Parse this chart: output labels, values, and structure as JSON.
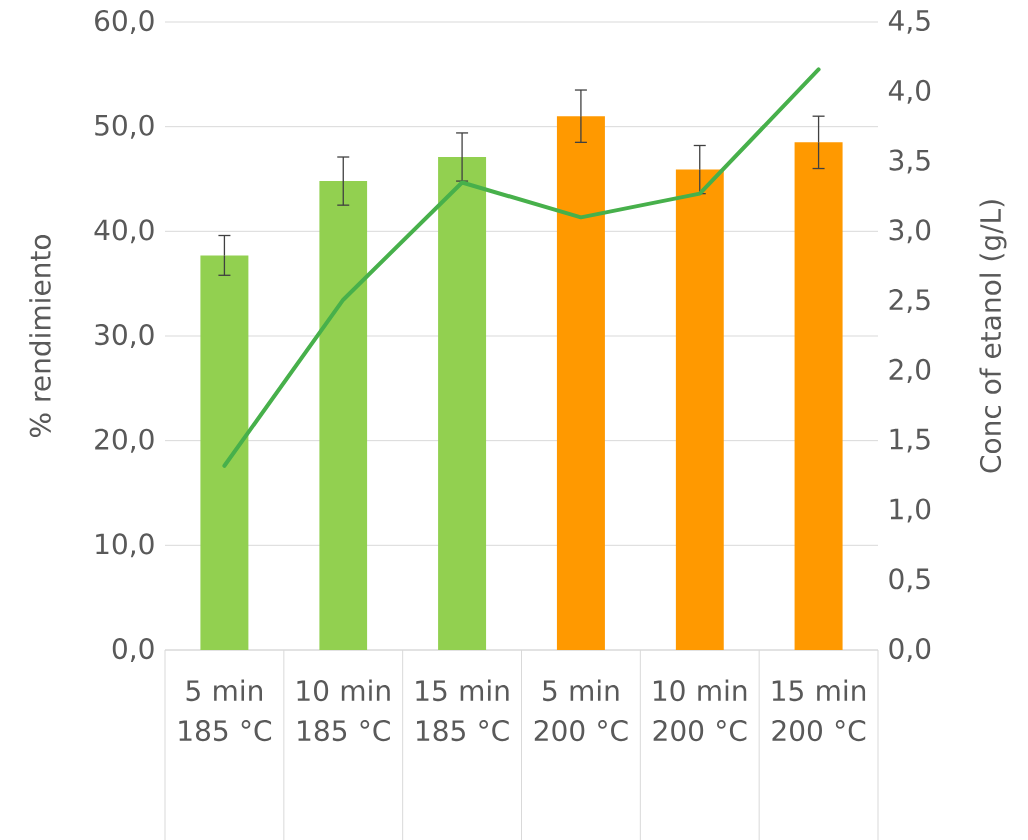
{
  "chart_data": {
    "type": "bar",
    "categories": [
      "5 min 185 °C",
      "10 min 185 °C",
      "15 min 185 °C",
      "5 min 200 °C",
      "10 min 200 °C",
      "15 min 200 °C"
    ],
    "series": [
      {
        "colors": [
          "#92d050",
          "#92d050",
          "#92d050",
          "#ff9900",
          "#ff9900",
          "#ff9900"
        ],
        "values": [
          37.7,
          44.8,
          47.1,
          51.0,
          45.9,
          48.5
        ],
        "errors": [
          1.9,
          2.3,
          2.3,
          2.5,
          2.3,
          2.5
        ]
      },
      {
        "type": "line",
        "axis": "y2",
        "color": "#47b04b",
        "values": [
          1.32,
          2.51,
          3.35,
          3.1,
          3.27,
          4.16
        ]
      }
    ],
    "ylabel": "% rendimiento",
    "y2label": "Conc of etanol (g/L)",
    "ylim": [
      0,
      60
    ],
    "yticks": [
      {
        "value": 0,
        "label": "0,0"
      },
      {
        "value": 10,
        "label": "10,0"
      },
      {
        "value": 20,
        "label": "20,0"
      },
      {
        "value": 30,
        "label": "30,0"
      },
      {
        "value": 40,
        "label": "40,0"
      },
      {
        "value": 50,
        "label": "50,0"
      },
      {
        "value": 60,
        "label": "60,0"
      }
    ],
    "y2lim": [
      0,
      4.5
    ],
    "y2ticks": [
      {
        "value": 0,
        "label": "0,0"
      },
      {
        "value": 0.5,
        "label": "0,5"
      },
      {
        "value": 1,
        "label": "1,0"
      },
      {
        "value": 1.5,
        "label": "1,5"
      },
      {
        "value": 2,
        "label": "2,0"
      },
      {
        "value": 2.5,
        "label": "2,5"
      },
      {
        "value": 3,
        "label": "3,0"
      },
      {
        "value": 3.5,
        "label": "3,5"
      },
      {
        "value": 4,
        "label": "4,0"
      },
      {
        "value": 4.5,
        "label": "4,5"
      }
    ],
    "grid": "y"
  }
}
